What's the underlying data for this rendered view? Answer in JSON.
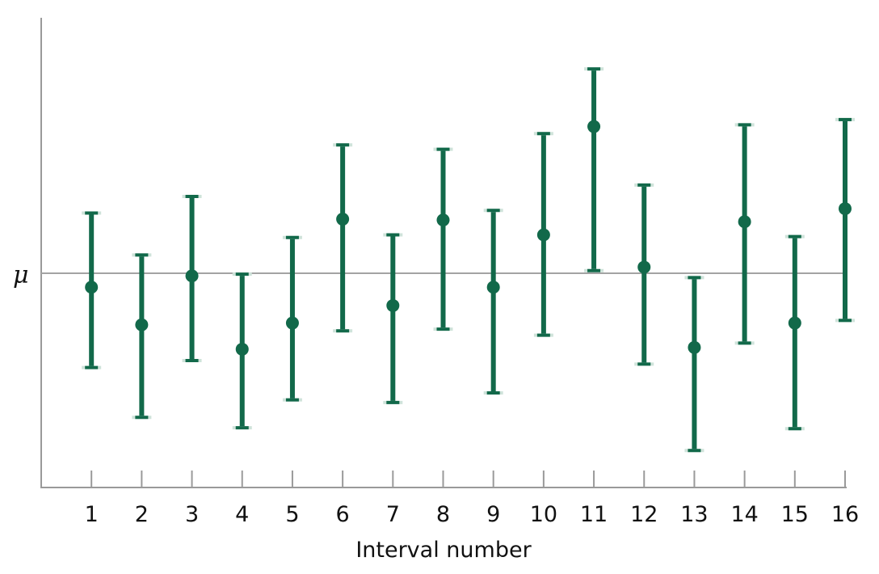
{
  "chart_data": {
    "type": "scatter",
    "xlabel": "Interval number",
    "ylabel": "",
    "reference_line": {
      "label": "μ",
      "value": 0
    },
    "x": [
      1,
      2,
      3,
      4,
      5,
      6,
      7,
      8,
      9,
      10,
      11,
      12,
      13,
      14,
      15,
      16
    ],
    "series": [
      {
        "center": [
          -1.6,
          -5.9,
          -0.3,
          -8.7,
          -5.7,
          6.2,
          -3.7,
          6.1,
          -1.6,
          4.4,
          16.8,
          0.7,
          -8.5,
          5.9,
          -5.7,
          7.4
        ],
        "lower": [
          -10.8,
          -16.5,
          -10.0,
          -17.7,
          -14.5,
          -6.6,
          -14.8,
          -6.4,
          -13.7,
          -7.1,
          0.3,
          -10.4,
          -20.3,
          -8.0,
          -17.8,
          -5.4
        ],
        "upper": [
          6.9,
          2.1,
          8.8,
          -0.1,
          4.1,
          14.7,
          4.4,
          14.2,
          7.2,
          16.0,
          23.4,
          10.1,
          -0.5,
          17.0,
          4.2,
          17.6
        ]
      }
    ],
    "xlim": [
      0,
      16.5
    ],
    "ylim": [
      -23,
      27
    ],
    "grid": false,
    "colors": {
      "series": "#12694a",
      "cap": "#cfe3da",
      "axis": "#9a9a9a"
    }
  }
}
